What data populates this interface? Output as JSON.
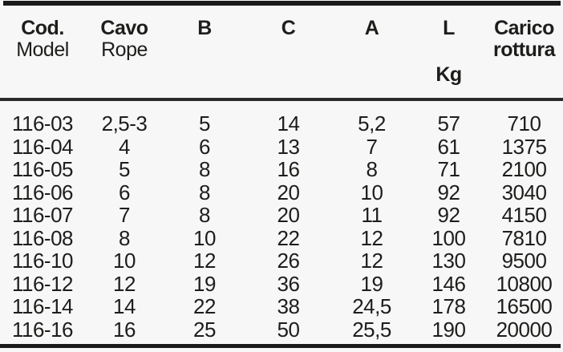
{
  "table": {
    "columns": [
      {
        "id": "cod",
        "line1": "Cod.",
        "line2": "Model",
        "line3": ""
      },
      {
        "id": "cavo-rope",
        "line1": "Cavo",
        "line2": "Rope",
        "line3": ""
      },
      {
        "id": "b",
        "line1": "B",
        "line2": "",
        "line3": ""
      },
      {
        "id": "c",
        "line1": "C",
        "line2": "",
        "line3": ""
      },
      {
        "id": "a",
        "line1": "A",
        "line2": "",
        "line3": ""
      },
      {
        "id": "l",
        "line1": "L",
        "line2": "",
        "line3": "Kg"
      },
      {
        "id": "carico-rottura",
        "line1": "Carico",
        "line2": "rottura",
        "line3": ""
      }
    ],
    "rows": [
      [
        "116-03",
        "2,5-3",
        "5",
        "14",
        "5,2",
        "57",
        "710"
      ],
      [
        "116-04",
        "4",
        "6",
        "13",
        "7",
        "61",
        "1375"
      ],
      [
        "116-05",
        "5",
        "8",
        "16",
        "8",
        "71",
        "2100"
      ],
      [
        "116-06",
        "6",
        "8",
        "20",
        "10",
        "92",
        "3040"
      ],
      [
        "116-07",
        "7",
        "8",
        "20",
        "11",
        "92",
        "4150"
      ],
      [
        "116-08",
        "8",
        "10",
        "22",
        "12",
        "100",
        "7810"
      ],
      [
        "116-10",
        "10",
        "12",
        "26",
        "12",
        "130",
        "9500"
      ],
      [
        "116-12",
        "12",
        "19",
        "36",
        "19",
        "146",
        "10800"
      ],
      [
        "116-14",
        "14",
        "22",
        "38",
        "24,5",
        "178",
        "16500"
      ],
      [
        "116-16",
        "16",
        "25",
        "50",
        "25,5",
        "190",
        "20000"
      ]
    ]
  },
  "colors": {
    "background": "#f7f7f7",
    "text": "#1d1d1b",
    "rule": "#1a1a1a"
  }
}
